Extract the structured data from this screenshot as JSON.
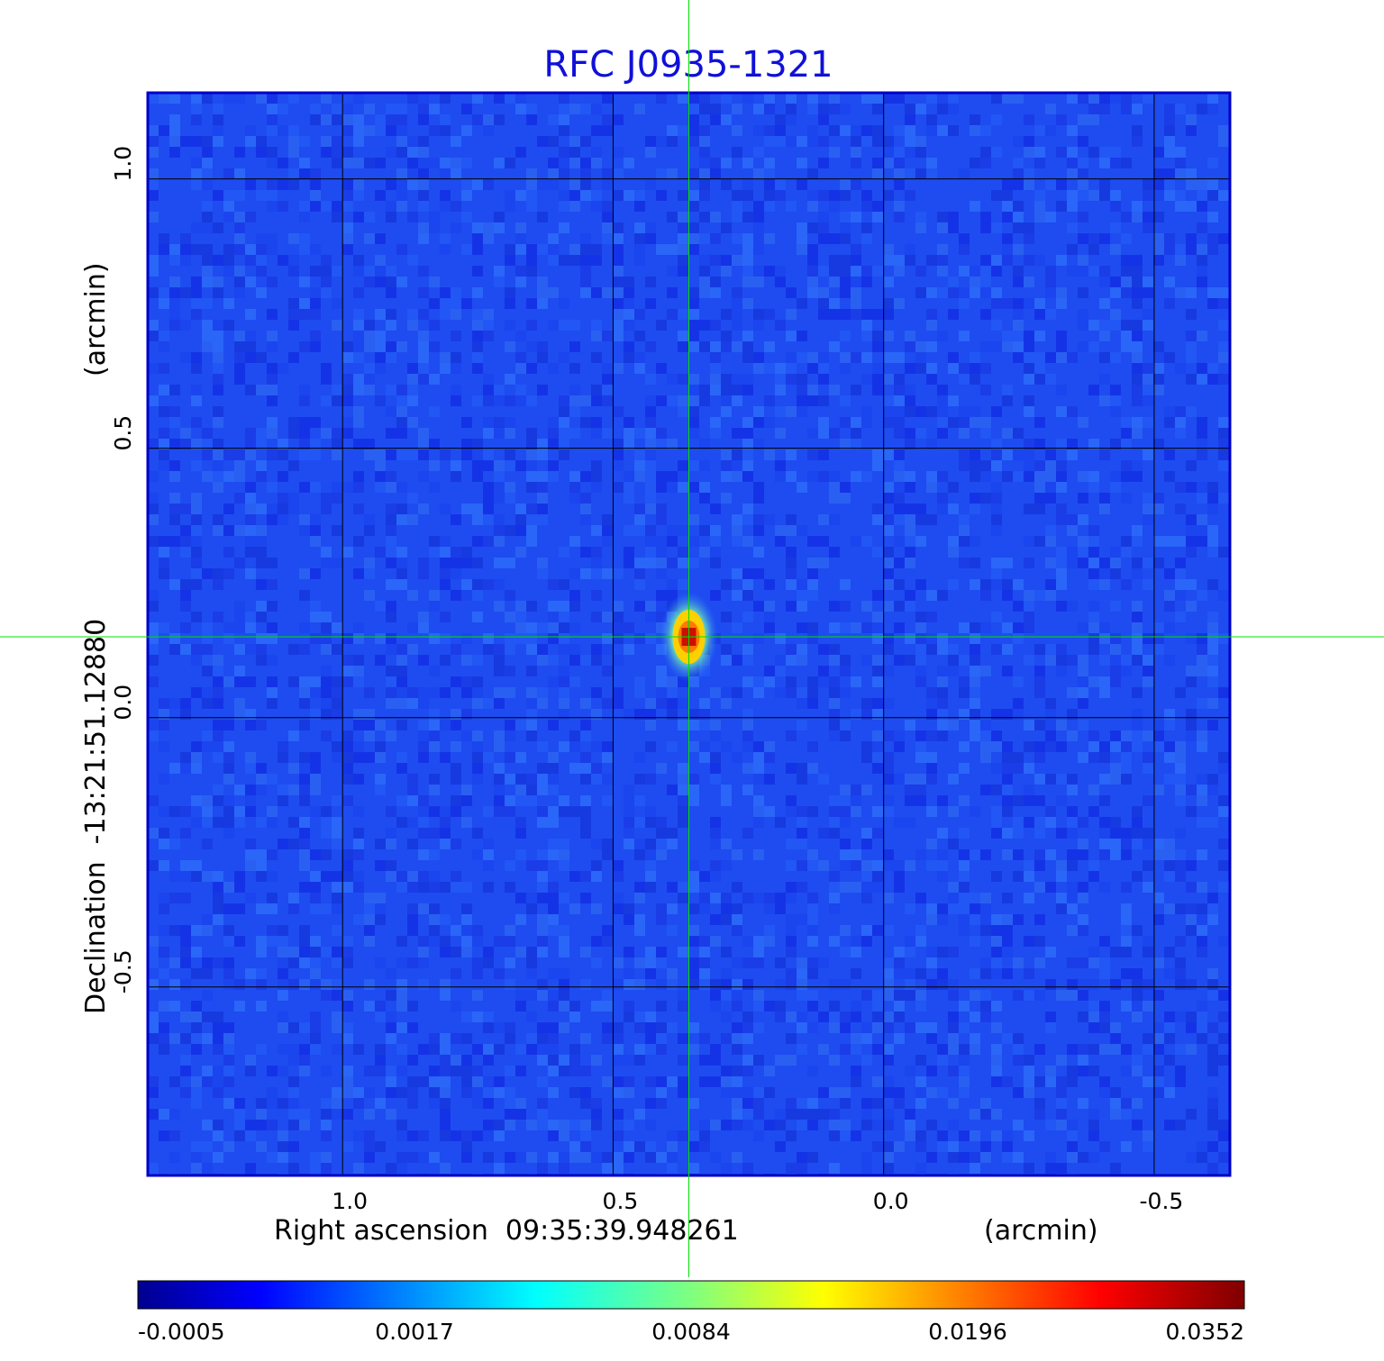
{
  "chart_data": {
    "type": "heatmap",
    "title": "RFC J0935-1321",
    "xlabel": "Right ascension  09:35:39.948261",
    "xunit": "(arcmin)",
    "ylabel": "Declination  -13:21:51.12880",
    "yunit": "(arcmin)",
    "xlim": [
      1.36,
      -0.64
    ],
    "ylim": [
      -0.85,
      1.16
    ],
    "x_ticks": [
      1.0,
      0.5,
      0.0,
      -0.5
    ],
    "x_tick_labels": [
      "1.0",
      "0.5",
      "0.0",
      "-0.5"
    ],
    "y_ticks": [
      1.0,
      0.5,
      0.0,
      -0.5
    ],
    "y_tick_labels": [
      "1.0",
      "0.5",
      "0.0",
      "-0.5"
    ],
    "grid": true,
    "crosshair": {
      "x": 0.36,
      "y": 0.15,
      "color": "#00e000"
    },
    "source_peak": {
      "x": 0.36,
      "y": 0.15,
      "value": 0.0352
    },
    "colorbar": {
      "colormap": "jet",
      "tick_labels": [
        "-0.0005",
        "0.0017",
        "0.0084",
        "0.0196",
        "0.0352"
      ],
      "tick_values": [
        -0.0005,
        0.0017,
        0.0084,
        0.0196,
        0.0352
      ]
    },
    "background_color": "#1e4cf0"
  }
}
